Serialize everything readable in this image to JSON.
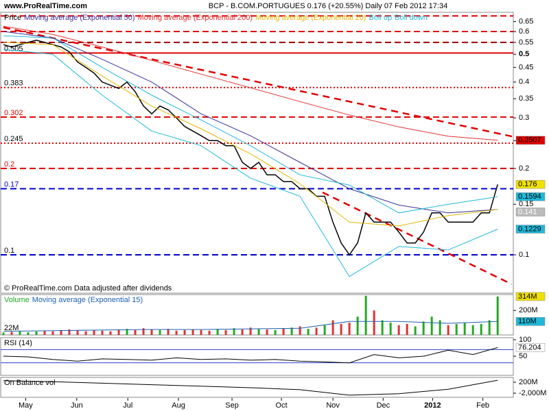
{
  "header": {
    "site": "www.ProRealTime.com",
    "title": "BCP - B.COM.PORTUGUES    0.176 (+20.55%)    Daily  07 Feb 2012 17:34"
  },
  "chart_data": [
    {
      "type": "line",
      "log": true,
      "xlim": [
        0,
        61.9
      ],
      "ylim": [
        0.0735,
        0.7
      ],
      "xticks": [
        {
          "value": 2.7,
          "label": "May"
        },
        {
          "value": 8.9,
          "label": "Jun"
        },
        {
          "value": 15.1,
          "label": "Jul"
        },
        {
          "value": 21.25,
          "label": "Aug"
        },
        {
          "value": 27.75,
          "label": "Sep"
        },
        {
          "value": 33.75,
          "label": "Oct"
        },
        {
          "value": 40,
          "label": "Nov"
        },
        {
          "value": 46.1,
          "label": "Dec"
        },
        {
          "value": 52.1,
          "label": "2012"
        },
        {
          "value": 58.2,
          "label": "Feb"
        }
      ],
      "yticks": [
        0.65,
        0.6,
        0.55,
        0.5,
        0.45,
        0.4,
        0.35,
        0.3,
        0.25,
        0.2,
        0.15,
        0.1
      ],
      "series": [
        {
          "name": "Price",
          "color": "#000000",
          "values": [
            0.54,
            0.53,
            0.54,
            0.55,
            0.56,
            0.55,
            0.54,
            0.53,
            0.51,
            0.47,
            0.45,
            0.43,
            0.4,
            0.39,
            0.38,
            0.4,
            0.37,
            0.33,
            0.31,
            0.33,
            0.32,
            0.3,
            0.28,
            0.27,
            0.26,
            0.25,
            0.25,
            0.24,
            0.24,
            0.21,
            0.2,
            0.21,
            0.19,
            0.19,
            0.18,
            0.18,
            0.17,
            0.17,
            0.16,
            0.16,
            0.13,
            0.11,
            0.1,
            0.11,
            0.14,
            0.13,
            0.13,
            0.13,
            0.12,
            0.11,
            0.11,
            0.12,
            0.14,
            0.14,
            0.13,
            0.13,
            0.13,
            0.13,
            0.14,
            0.14,
            0.176
          ]
        },
        {
          "name": "Moving average (Exponential 50)",
          "color": "#3a2f9a",
          "x": [
            0,
            6,
            12,
            18,
            24,
            30,
            36,
            42,
            48,
            54,
            60
          ],
          "values": [
            0.6,
            0.57,
            0.48,
            0.4,
            0.31,
            0.26,
            0.21,
            0.17,
            0.149,
            0.14,
            0.144
          ]
        },
        {
          "name": "Moving average (Exponential 200)",
          "color": "#e03030",
          "x": [
            0,
            6,
            12,
            18,
            24,
            30,
            36,
            42,
            48,
            54,
            60
          ],
          "values": [
            0.626,
            0.586,
            0.53,
            0.476,
            0.426,
            0.382,
            0.342,
            0.307,
            0.279,
            0.259,
            0.2507
          ]
        },
        {
          "name": "Moving average (Exponential 20)",
          "color": "#e0b800",
          "x": [
            0,
            6,
            12,
            18,
            24,
            30,
            36,
            42,
            48,
            54,
            60
          ],
          "values": [
            0.55,
            0.54,
            0.42,
            0.33,
            0.275,
            0.225,
            0.177,
            0.13,
            0.126,
            0.137,
            0.144
          ]
        },
        {
          "name": "Boll up",
          "color": "#20b8d8",
          "x": [
            0,
            6,
            12,
            18,
            24,
            30,
            36,
            42,
            48,
            54,
            60
          ],
          "values": [
            0.58,
            0.57,
            0.45,
            0.36,
            0.295,
            0.24,
            0.19,
            0.175,
            0.14,
            0.15,
            0.1594
          ]
        },
        {
          "name": "Boll down",
          "color": "#20b8d8",
          "x": [
            0,
            6,
            12,
            18,
            24,
            30,
            36,
            42,
            48,
            54,
            60
          ],
          "values": [
            0.52,
            0.5,
            0.36,
            0.27,
            0.24,
            0.185,
            0.16,
            0.084,
            0.107,
            0.104,
            0.1229
          ]
        }
      ],
      "levels": [
        {
          "value": 0.68,
          "color": "#e00000",
          "style": "dash"
        },
        {
          "value": 0.6,
          "color": "#e00000",
          "style": "dash"
        },
        {
          "value": 0.55,
          "color": "#a00000",
          "style": "dash"
        },
        {
          "value": 0.505,
          "label": "0.505",
          "label_color": "#000000",
          "color": "#e00000",
          "style": "solid"
        },
        {
          "value": 0.383,
          "label": "0.383",
          "label_color": "#000000",
          "color": "#e00000",
          "style": "dot"
        },
        {
          "value": 0.302,
          "label": "0.302",
          "label_color": "#e00000",
          "color": "#e00000",
          "style": "dash"
        },
        {
          "value": 0.245,
          "label": "0.245",
          "label_color": "#000000",
          "color": "#e00000",
          "style": "dot"
        },
        {
          "value": 0.2,
          "label": "0.2",
          "label_color": "#e00000",
          "color": "#e00000",
          "style": "dash"
        },
        {
          "value": 0.17,
          "label": "0.17",
          "label_color": "#0000cc",
          "color": "#0000cc",
          "style": "dash"
        },
        {
          "value": 0.1,
          "label": "0.1",
          "label_color": "#000000",
          "color": "#0000cc",
          "style": "dash"
        }
      ],
      "trendlines": [
        {
          "x": [
            0,
            61.9
          ],
          "values": [
            0.62,
            0.258
          ],
          "color": "#e00000"
        },
        {
          "x": [
            38.75,
            61.7
          ],
          "values": [
            0.165,
            0.079
          ],
          "color": "#e00000"
        }
      ],
      "tags": [
        {
          "value": 0.2507,
          "label": "0.2507",
          "color": "#e00000"
        },
        {
          "value": 0.176,
          "label": "0.176",
          "color": "#f0e000"
        },
        {
          "value": 0.1594,
          "label": "0.1594",
          "color": "#20b8d8"
        },
        {
          "value": 0.141,
          "label": "0.141",
          "color": "#bbbbbb"
        },
        {
          "value": 0.1229,
          "label": "0.1229",
          "color": "#20b8d8"
        }
      ],
      "note": "© ProRealTime.com  Data adjusted after dividends"
    },
    {
      "type": "bar",
      "ylim": [
        0,
        330000000
      ],
      "yticks": [
        {
          "value": 200000000,
          "label": "200M"
        }
      ],
      "annotation": "22M",
      "series": [
        {
          "name": "Volume",
          "color": "#22aa22",
          "down_color": "#dd3333",
          "values": [
            20000000,
            25000000,
            30000000,
            22000000,
            28000000,
            35000000,
            30000000,
            40000000,
            45000000,
            35000000,
            30000000,
            40000000,
            35000000,
            30000000,
            45000000,
            50000000,
            40000000,
            55000000,
            45000000,
            40000000,
            50000000,
            35000000,
            40000000,
            45000000,
            40000000,
            35000000,
            50000000,
            40000000,
            55000000,
            45000000,
            60000000,
            50000000,
            45000000,
            40000000,
            55000000,
            60000000,
            70000000,
            50000000,
            60000000,
            80000000,
            120000000,
            90000000,
            100000000,
            150000000,
            320000000,
            200000000,
            120000000,
            100000000,
            80000000,
            90000000,
            70000000,
            110000000,
            150000000,
            120000000,
            80000000,
            90000000,
            100000000,
            80000000,
            90000000,
            120000000,
            314000000
          ]
        },
        {
          "name": "Moving average (Exponential 15)",
          "color": "#2060b0",
          "x": [
            0,
            6,
            12,
            18,
            24,
            30,
            36,
            42,
            48,
            54,
            60
          ],
          "values": [
            30000000,
            35000000,
            40000000,
            45000000,
            45000000,
            50000000,
            55000000,
            110000000,
            110000000,
            95000000,
            110000000
          ]
        }
      ],
      "tags": [
        {
          "value": 314000000,
          "label": "314M",
          "color": "#f0e000"
        },
        {
          "value": 110000000,
          "label": "110M",
          "color": "#20b8d8"
        }
      ]
    },
    {
      "type": "line",
      "ylim": [
        -8,
        106
      ],
      "yticks": [
        100,
        50
      ],
      "series": [
        {
          "name": "RSI (14)",
          "color": "#000000",
          "x": [
            0,
            3,
            6,
            9,
            12,
            15,
            18,
            21,
            24,
            27,
            30,
            33,
            36,
            39,
            42,
            45,
            48,
            51,
            54,
            57,
            60
          ],
          "values": [
            50,
            48,
            40,
            35,
            42,
            40,
            38,
            45,
            40,
            42,
            38,
            40,
            35,
            33,
            30,
            55,
            45,
            50,
            68,
            55,
            76.204
          ]
        }
      ],
      "levels": [
        {
          "value": 70,
          "color": "#3040c0",
          "style": "solid"
        },
        {
          "value": 30,
          "color": "#3040c0",
          "style": "solid"
        }
      ],
      "tags": [
        {
          "value": 76.204,
          "label": "76.204",
          "color": "#ffffff"
        }
      ]
    },
    {
      "type": "line",
      "ylim": [
        -2825000000,
        1160000000
      ],
      "yticks": [
        {
          "value": 200000000,
          "label": "200M"
        },
        {
          "value": -2000000000,
          "label": "-2,000M"
        }
      ],
      "series": [
        {
          "name": "On Balance vol",
          "color": "#000000",
          "x": [
            0,
            6,
            12,
            18,
            24,
            30,
            36,
            42,
            48,
            54,
            60
          ],
          "values": [
            500000000,
            300000000,
            0,
            -300000000,
            -600000000,
            -900000000,
            -1300000000,
            -2400000000,
            -2100000000,
            -1200000000,
            600000000
          ]
        }
      ]
    }
  ]
}
